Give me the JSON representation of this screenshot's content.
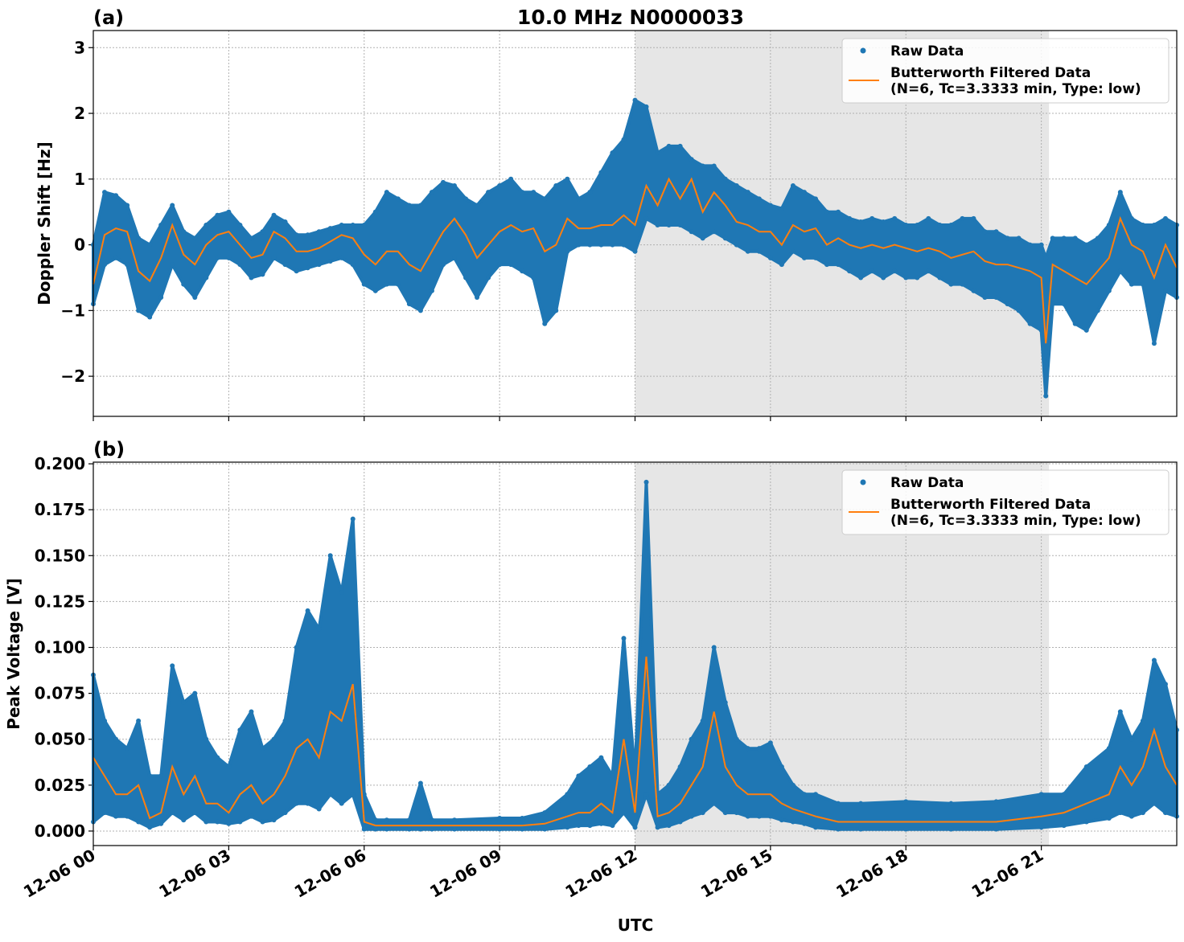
{
  "title": "10.0 MHz N0000033",
  "xlabel": "UTC",
  "colors": {
    "raw": "#1f77b4",
    "filtered": "#ff7f0e",
    "shade": "#e6e6e6",
    "grid": "#b0b0b0"
  },
  "x_ticks": [
    {
      "h": 0,
      "label": "12-06 00"
    },
    {
      "h": 3,
      "label": "12-06 03"
    },
    {
      "h": 6,
      "label": "12-06 06"
    },
    {
      "h": 9,
      "label": "12-06 09"
    },
    {
      "h": 12,
      "label": "12-06 12"
    },
    {
      "h": 15,
      "label": "12-06 15"
    },
    {
      "h": 18,
      "label": "12-06 18"
    },
    {
      "h": 21,
      "label": "12-06 21"
    }
  ],
  "chart_data": [
    {
      "type": "scatter+line",
      "panel_label": "(a)",
      "ylabel": "Doppler Shift [Hz]",
      "xlim_hours_utc": [
        0,
        24
      ],
      "ylim": [
        -2.61,
        3.26
      ],
      "y_ticks": [
        {
          "v": 3,
          "label": "3"
        },
        {
          "v": 2,
          "label": "2"
        },
        {
          "v": 1,
          "label": "1"
        },
        {
          "v": 0,
          "label": "0"
        },
        {
          "v": -1,
          "label": "−1"
        },
        {
          "v": -2,
          "label": "−2"
        }
      ],
      "grid": true,
      "legend_placement": "top-right",
      "shaded_span_hours": [
        12.0,
        21.17
      ],
      "legend": [
        "Raw Data",
        "Butterworth Filtered Data",
        "(N=6, Tc=3.3333 min, Type: low)"
      ],
      "series_columns": [
        "hour_utc",
        "filtered",
        "raw_min",
        "raw_max"
      ],
      "series": [
        [
          0,
          -0.6,
          -0.9,
          0.0
        ],
        [
          0.25,
          0.15,
          -0.3,
          0.8
        ],
        [
          0.5,
          0.25,
          -0.2,
          0.75
        ],
        [
          0.75,
          0.2,
          -0.3,
          0.6
        ],
        [
          1,
          -0.4,
          -1.0,
          0.1
        ],
        [
          1.25,
          -0.55,
          -1.1,
          0.0
        ],
        [
          1.5,
          -0.2,
          -0.8,
          0.3
        ],
        [
          1.75,
          0.3,
          -0.3,
          0.6
        ],
        [
          2,
          -0.15,
          -0.6,
          0.2
        ],
        [
          2.25,
          -0.3,
          -0.8,
          0.1
        ],
        [
          2.5,
          0.0,
          -0.5,
          0.3
        ],
        [
          2.75,
          0.15,
          -0.2,
          0.45
        ],
        [
          3,
          0.2,
          -0.2,
          0.5
        ],
        [
          3.25,
          0.0,
          -0.3,
          0.3
        ],
        [
          3.5,
          -0.2,
          -0.5,
          0.1
        ],
        [
          3.75,
          -0.15,
          -0.45,
          0.2
        ],
        [
          4,
          0.2,
          -0.2,
          0.45
        ],
        [
          4.25,
          0.1,
          -0.3,
          0.35
        ],
        [
          4.5,
          -0.1,
          -0.4,
          0.15
        ],
        [
          4.75,
          -0.1,
          -0.35,
          0.15
        ],
        [
          5,
          -0.05,
          -0.3,
          0.2
        ],
        [
          5.25,
          0.05,
          -0.25,
          0.25
        ],
        [
          5.5,
          0.15,
          -0.2,
          0.3
        ],
        [
          5.75,
          0.1,
          -0.3,
          0.3
        ],
        [
          6,
          -0.15,
          -0.6,
          0.3
        ],
        [
          6.25,
          -0.3,
          -0.7,
          0.5
        ],
        [
          6.5,
          -0.1,
          -0.6,
          0.8
        ],
        [
          6.75,
          -0.1,
          -0.6,
          0.7
        ],
        [
          7,
          -0.3,
          -0.9,
          0.6
        ],
        [
          7.25,
          -0.4,
          -1.0,
          0.6
        ],
        [
          7.5,
          -0.1,
          -0.7,
          0.8
        ],
        [
          7.75,
          0.2,
          -0.3,
          0.95
        ],
        [
          8,
          0.4,
          -0.2,
          0.9
        ],
        [
          8.25,
          0.15,
          -0.5,
          0.7
        ],
        [
          8.5,
          -0.2,
          -0.8,
          0.6
        ],
        [
          8.75,
          0.0,
          -0.5,
          0.8
        ],
        [
          9,
          0.2,
          -0.3,
          0.9
        ],
        [
          9.25,
          0.3,
          -0.3,
          1.0
        ],
        [
          9.5,
          0.2,
          -0.4,
          0.8
        ],
        [
          9.75,
          0.25,
          -0.5,
          0.8
        ],
        [
          10,
          -0.1,
          -1.2,
          0.7
        ],
        [
          10.25,
          0.0,
          -1.0,
          0.9
        ],
        [
          10.5,
          0.4,
          -0.1,
          1.0
        ],
        [
          10.75,
          0.25,
          0.0,
          0.7
        ],
        [
          11,
          0.25,
          0.0,
          0.8
        ],
        [
          11.25,
          0.3,
          0.0,
          1.1
        ],
        [
          11.5,
          0.3,
          0.0,
          1.4
        ],
        [
          11.75,
          0.45,
          0.0,
          1.6
        ],
        [
          12,
          0.3,
          -0.1,
          2.2
        ],
        [
          12.25,
          0.9,
          0.4,
          2.1
        ],
        [
          12.5,
          0.6,
          0.3,
          1.4
        ],
        [
          12.75,
          1.0,
          0.3,
          1.5
        ],
        [
          13,
          0.7,
          0.3,
          1.5
        ],
        [
          13.25,
          1.0,
          0.2,
          1.3
        ],
        [
          13.5,
          0.5,
          0.1,
          1.2
        ],
        [
          13.75,
          0.8,
          0.2,
          1.2
        ],
        [
          14,
          0.6,
          0.1,
          1.0
        ],
        [
          14.25,
          0.35,
          0.0,
          0.9
        ],
        [
          14.5,
          0.3,
          -0.1,
          0.8
        ],
        [
          14.75,
          0.2,
          -0.1,
          0.7
        ],
        [
          15,
          0.2,
          -0.2,
          0.6
        ],
        [
          15.25,
          0.0,
          -0.3,
          0.55
        ],
        [
          15.5,
          0.3,
          -0.1,
          0.9
        ],
        [
          15.75,
          0.2,
          -0.2,
          0.8
        ],
        [
          16,
          0.25,
          -0.2,
          0.7
        ],
        [
          16.25,
          0.0,
          -0.3,
          0.5
        ],
        [
          16.5,
          0.1,
          -0.3,
          0.5
        ],
        [
          16.75,
          0.0,
          -0.4,
          0.4
        ],
        [
          17,
          -0.05,
          -0.5,
          0.35
        ],
        [
          17.25,
          0.0,
          -0.4,
          0.4
        ],
        [
          17.5,
          -0.05,
          -0.5,
          0.35
        ],
        [
          17.75,
          0.0,
          -0.4,
          0.4
        ],
        [
          18,
          -0.05,
          -0.5,
          0.3
        ],
        [
          18.25,
          -0.1,
          -0.5,
          0.3
        ],
        [
          18.5,
          -0.05,
          -0.4,
          0.4
        ],
        [
          18.75,
          -0.1,
          -0.5,
          0.3
        ],
        [
          19,
          -0.2,
          -0.6,
          0.3
        ],
        [
          19.25,
          -0.15,
          -0.6,
          0.4
        ],
        [
          19.5,
          -0.1,
          -0.7,
          0.4
        ],
        [
          19.75,
          -0.25,
          -0.8,
          0.2
        ],
        [
          20,
          -0.3,
          -0.8,
          0.2
        ],
        [
          20.25,
          -0.3,
          -0.9,
          0.1
        ],
        [
          20.5,
          -0.35,
          -1.0,
          0.1
        ],
        [
          20.75,
          -0.4,
          -1.2,
          0.0
        ],
        [
          21,
          -0.5,
          -1.3,
          0.0
        ],
        [
          21.1,
          -1.5,
          -2.3,
          -0.2
        ],
        [
          21.25,
          -0.3,
          -0.9,
          0.1
        ],
        [
          21.5,
          -0.4,
          -0.9,
          0.1
        ],
        [
          21.75,
          -0.5,
          -1.2,
          0.1
        ],
        [
          22,
          -0.6,
          -1.3,
          0.0
        ],
        [
          22.25,
          -0.4,
          -1.0,
          0.1
        ],
        [
          22.5,
          -0.2,
          -0.7,
          0.3
        ],
        [
          22.75,
          0.4,
          -0.4,
          0.8
        ],
        [
          23,
          0.0,
          -0.6,
          0.4
        ],
        [
          23.25,
          -0.1,
          -0.6,
          0.3
        ],
        [
          23.5,
          -0.5,
          -1.5,
          0.3
        ],
        [
          23.75,
          0.0,
          -0.7,
          0.4
        ],
        [
          24,
          -0.35,
          -0.8,
          0.3
        ]
      ]
    },
    {
      "type": "scatter+line",
      "panel_label": "(b)",
      "ylabel": "Peak Voltage [V]",
      "xlim_hours_utc": [
        0,
        24
      ],
      "ylim": [
        -0.0079,
        0.2009
      ],
      "y_ticks": [
        {
          "v": 0,
          "label": "0.000"
        },
        {
          "v": 0.025,
          "label": "0.025"
        },
        {
          "v": 0.05,
          "label": "0.050"
        },
        {
          "v": 0.075,
          "label": "0.075"
        },
        {
          "v": 0.1,
          "label": "0.100"
        },
        {
          "v": 0.125,
          "label": "0.125"
        },
        {
          "v": 0.15,
          "label": "0.150"
        },
        {
          "v": 0.175,
          "label": "0.175"
        },
        {
          "v": 0.2,
          "label": "0.200"
        }
      ],
      "grid": true,
      "legend_placement": "top-right",
      "shaded_span_hours": [
        12.0,
        21.17
      ],
      "legend": [
        "Raw Data",
        "Butterworth Filtered Data",
        "(N=6, Tc=3.3333 min, Type: low)"
      ],
      "series_columns": [
        "hour_utc",
        "filtered",
        "raw_min",
        "raw_max"
      ],
      "series": [
        [
          0,
          0.04,
          0.005,
          0.085
        ],
        [
          0.25,
          0.03,
          0.01,
          0.06
        ],
        [
          0.5,
          0.02,
          0.008,
          0.05
        ],
        [
          0.75,
          0.02,
          0.008,
          0.045
        ],
        [
          1,
          0.025,
          0.005,
          0.06
        ],
        [
          1.25,
          0.007,
          0.002,
          0.03
        ],
        [
          1.5,
          0.01,
          0.004,
          0.03
        ],
        [
          1.75,
          0.035,
          0.01,
          0.09
        ],
        [
          2,
          0.02,
          0.006,
          0.07
        ],
        [
          2.25,
          0.03,
          0.01,
          0.075
        ],
        [
          2.5,
          0.015,
          0.005,
          0.05
        ],
        [
          2.75,
          0.015,
          0.005,
          0.04
        ],
        [
          3,
          0.01,
          0.004,
          0.035
        ],
        [
          3.25,
          0.02,
          0.005,
          0.055
        ],
        [
          3.5,
          0.025,
          0.008,
          0.065
        ],
        [
          3.75,
          0.015,
          0.005,
          0.045
        ],
        [
          4,
          0.02,
          0.006,
          0.05
        ],
        [
          4.25,
          0.03,
          0.01,
          0.06
        ],
        [
          4.5,
          0.045,
          0.015,
          0.1
        ],
        [
          4.75,
          0.05,
          0.015,
          0.12
        ],
        [
          5,
          0.04,
          0.012,
          0.11
        ],
        [
          5.25,
          0.065,
          0.02,
          0.15
        ],
        [
          5.5,
          0.06,
          0.015,
          0.13
        ],
        [
          5.75,
          0.08,
          0.02,
          0.17
        ],
        [
          6,
          0.005,
          0.001,
          0.02
        ],
        [
          6.25,
          0.003,
          0.001,
          0.006
        ],
        [
          6.5,
          0.003,
          0.001,
          0.006
        ],
        [
          7,
          0.003,
          0.001,
          0.006
        ],
        [
          7.25,
          0.003,
          0.001,
          0.026
        ],
        [
          7.5,
          0.003,
          0.001,
          0.006
        ],
        [
          8,
          0.003,
          0.001,
          0.006
        ],
        [
          9,
          0.003,
          0.001,
          0.007
        ],
        [
          9.5,
          0.003,
          0.001,
          0.007
        ],
        [
          10,
          0.004,
          0.001,
          0.01
        ],
        [
          10.5,
          0.008,
          0.002,
          0.02
        ],
        [
          10.75,
          0.01,
          0.003,
          0.03
        ],
        [
          11,
          0.01,
          0.003,
          0.035
        ],
        [
          11.25,
          0.015,
          0.004,
          0.04
        ],
        [
          11.5,
          0.01,
          0.003,
          0.03
        ],
        [
          11.75,
          0.05,
          0.01,
          0.105
        ],
        [
          12,
          0.01,
          0.002,
          0.03
        ],
        [
          12.25,
          0.095,
          0.02,
          0.19
        ],
        [
          12.5,
          0.008,
          0.002,
          0.02
        ],
        [
          12.75,
          0.01,
          0.003,
          0.025
        ],
        [
          13,
          0.015,
          0.005,
          0.035
        ],
        [
          13.25,
          0.025,
          0.008,
          0.05
        ],
        [
          13.5,
          0.035,
          0.01,
          0.06
        ],
        [
          13.75,
          0.065,
          0.015,
          0.1
        ],
        [
          14,
          0.035,
          0.01,
          0.07
        ],
        [
          14.25,
          0.025,
          0.01,
          0.05
        ],
        [
          14.5,
          0.02,
          0.008,
          0.045
        ],
        [
          14.75,
          0.02,
          0.008,
          0.045
        ],
        [
          15,
          0.02,
          0.008,
          0.048
        ],
        [
          15.25,
          0.015,
          0.006,
          0.035
        ],
        [
          15.5,
          0.012,
          0.005,
          0.025
        ],
        [
          15.75,
          0.01,
          0.004,
          0.02
        ],
        [
          16,
          0.008,
          0.002,
          0.02
        ],
        [
          16.5,
          0.005,
          0.001,
          0.015
        ],
        [
          17,
          0.005,
          0.001,
          0.015
        ],
        [
          18,
          0.005,
          0.001,
          0.016
        ],
        [
          19,
          0.005,
          0.001,
          0.015
        ],
        [
          20,
          0.005,
          0.001,
          0.016
        ],
        [
          21,
          0.008,
          0.002,
          0.02
        ],
        [
          21.5,
          0.01,
          0.003,
          0.02
        ],
        [
          22,
          0.015,
          0.005,
          0.035
        ],
        [
          22.5,
          0.02,
          0.007,
          0.045
        ],
        [
          22.75,
          0.035,
          0.01,
          0.065
        ],
        [
          23,
          0.025,
          0.008,
          0.05
        ],
        [
          23.25,
          0.035,
          0.01,
          0.06
        ],
        [
          23.5,
          0.055,
          0.015,
          0.093
        ],
        [
          23.75,
          0.035,
          0.01,
          0.08
        ],
        [
          24,
          0.025,
          0.008,
          0.055
        ]
      ]
    }
  ]
}
